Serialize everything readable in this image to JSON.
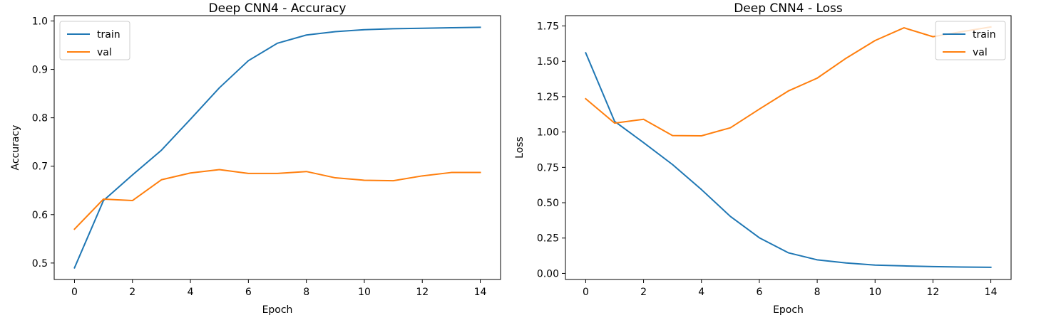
{
  "chart_data": [
    {
      "type": "line",
      "title": "Deep CNN4 - Accuracy",
      "xlabel": "Epoch",
      "ylabel": "Accuracy",
      "xlim": [
        -0.7,
        14.7
      ],
      "ylim": [
        0.466,
        1.011
      ],
      "xticks": [
        0,
        2,
        4,
        6,
        8,
        10,
        12,
        14
      ],
      "yticks": [
        0.5,
        0.6,
        0.7,
        0.8,
        0.9,
        1.0
      ],
      "ytick_labels": [
        "0.5",
        "0.6",
        "0.7",
        "0.8",
        "0.9",
        "1.0"
      ],
      "legend_position": "upper-left",
      "grid": false,
      "x": [
        0,
        1,
        2,
        3,
        4,
        5,
        6,
        7,
        8,
        9,
        10,
        11,
        12,
        13,
        14
      ],
      "series": [
        {
          "name": "train",
          "color": "#1f77b4",
          "values": [
            0.49,
            0.629,
            0.682,
            0.733,
            0.797,
            0.862,
            0.918,
            0.954,
            0.971,
            0.978,
            0.982,
            0.984,
            0.985,
            0.986,
            0.987
          ]
        },
        {
          "name": "val",
          "color": "#ff7f0e",
          "values": [
            0.57,
            0.632,
            0.629,
            0.672,
            0.686,
            0.693,
            0.685,
            0.685,
            0.689,
            0.676,
            0.671,
            0.67,
            0.68,
            0.687,
            0.687
          ]
        }
      ]
    },
    {
      "type": "line",
      "title": "Deep CNN4 - Loss",
      "xlabel": "Epoch",
      "ylabel": "Loss",
      "xlim": [
        -0.7,
        14.7
      ],
      "ylim": [
        -0.043,
        1.823
      ],
      "xticks": [
        0,
        2,
        4,
        6,
        8,
        10,
        12,
        14
      ],
      "yticks": [
        0.0,
        0.25,
        0.5,
        0.75,
        1.0,
        1.25,
        1.5,
        1.75
      ],
      "ytick_labels": [
        "0.00",
        "0.25",
        "0.50",
        "0.75",
        "1.00",
        "1.25",
        "1.50",
        "1.75"
      ],
      "legend_position": "upper-right",
      "grid": false,
      "x": [
        0,
        1,
        2,
        3,
        4,
        5,
        6,
        7,
        8,
        9,
        10,
        11,
        12,
        13,
        14
      ],
      "series": [
        {
          "name": "train",
          "color": "#1f77b4",
          "values": [
            1.56,
            1.075,
            0.925,
            0.77,
            0.593,
            0.403,
            0.252,
            0.146,
            0.096,
            0.074,
            0.059,
            0.053,
            0.048,
            0.045,
            0.043
          ]
        },
        {
          "name": "val",
          "color": "#ff7f0e",
          "values": [
            1.235,
            1.063,
            1.09,
            0.975,
            0.973,
            1.03,
            1.162,
            1.29,
            1.381,
            1.522,
            1.647,
            1.737,
            1.674,
            1.71,
            1.743
          ]
        }
      ]
    }
  ]
}
